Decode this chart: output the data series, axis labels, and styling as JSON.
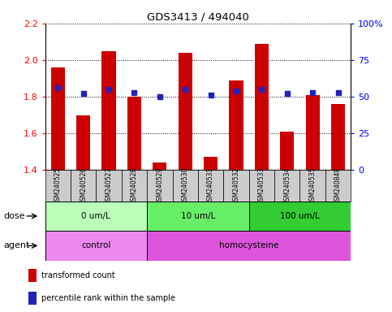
{
  "title": "GDS3413 / 494040",
  "samples": [
    "GSM240525",
    "GSM240526",
    "GSM240527",
    "GSM240528",
    "GSM240529",
    "GSM240530",
    "GSM240531",
    "GSM240532",
    "GSM240533",
    "GSM240534",
    "GSM240535",
    "GSM240848"
  ],
  "bar_values": [
    1.96,
    1.7,
    2.05,
    1.8,
    1.44,
    2.04,
    1.47,
    1.89,
    2.09,
    1.61,
    1.81,
    1.76
  ],
  "blue_values": [
    56,
    52,
    55,
    53,
    50,
    55,
    51,
    54,
    55,
    52,
    53,
    53
  ],
  "ymin": 1.4,
  "ymax": 2.2,
  "yticks_left": [
    1.4,
    1.6,
    1.8,
    2.0,
    2.2
  ],
  "yticks_right": [
    0,
    25,
    50,
    75,
    100
  ],
  "bar_color": "#cc0000",
  "blue_color": "#2222bb",
  "tick_bg_color": "#cccccc",
  "dose_groups": [
    {
      "label": "0 um/L",
      "start": 0,
      "end": 4,
      "color": "#bbffbb"
    },
    {
      "label": "10 um/L",
      "start": 4,
      "end": 8,
      "color": "#66ee66"
    },
    {
      "label": "100 um/L",
      "start": 8,
      "end": 12,
      "color": "#33cc33"
    }
  ],
  "agent_groups": [
    {
      "label": "control",
      "start": 0,
      "end": 4,
      "color": "#ee88ee"
    },
    {
      "label": "homocysteine",
      "start": 4,
      "end": 12,
      "color": "#dd55dd"
    }
  ],
  "legend_items": [
    {
      "color": "#cc0000",
      "label": "transformed count"
    },
    {
      "color": "#2222bb",
      "label": "percentile rank within the sample"
    }
  ]
}
